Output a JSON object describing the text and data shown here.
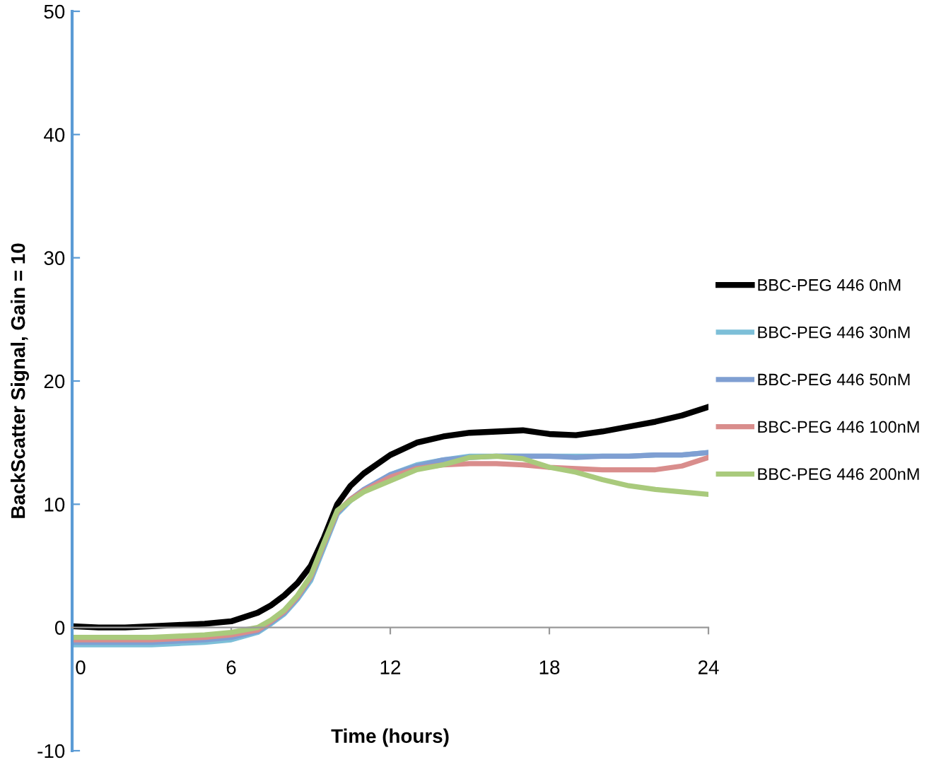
{
  "chart_data": {
    "type": "line",
    "xlabel": "Time (hours)",
    "ylabel": "BackScatter Signal, Gain = 10",
    "x": [
      0,
      1,
      2,
      3,
      4,
      5,
      6,
      7,
      7.5,
      8,
      8.5,
      9,
      9.5,
      10,
      10.5,
      11,
      12,
      13,
      14,
      15,
      16,
      17,
      18,
      19,
      20,
      21,
      22,
      23,
      24
    ],
    "series": [
      {
        "name": "BBC-PEG 446 0nM",
        "color": "#000000",
        "values": [
          0.1,
          0.0,
          0.0,
          0.1,
          0.2,
          0.3,
          0.5,
          1.2,
          1.8,
          2.6,
          3.6,
          5.0,
          7.3,
          10.0,
          11.5,
          12.5,
          14.0,
          15.0,
          15.5,
          15.8,
          15.9,
          16.0,
          15.7,
          15.6,
          15.9,
          16.3,
          16.7,
          17.2,
          17.9
        ]
      },
      {
        "name": "BBC-PEG 446 30nM",
        "color": "#7dbfd8",
        "values": [
          -1.4,
          -1.4,
          -1.4,
          -1.4,
          -1.3,
          -1.2,
          -1.0,
          -0.4,
          0.3,
          1.1,
          2.3,
          3.8,
          6.5,
          9.2,
          10.3,
          11.1,
          12.4,
          13.2,
          13.6,
          13.9,
          13.9,
          13.9,
          13.9,
          13.9,
          13.9,
          13.9,
          14.0,
          14.0,
          14.2
        ]
      },
      {
        "name": "BBC-PEG 446 50nM",
        "color": "#7f9fd2",
        "values": [
          -1.2,
          -1.2,
          -1.2,
          -1.2,
          -1.1,
          -1.0,
          -0.8,
          -0.3,
          0.4,
          1.2,
          2.4,
          4.0,
          6.7,
          9.3,
          10.4,
          11.2,
          12.4,
          13.1,
          13.6,
          13.8,
          13.9,
          13.9,
          13.9,
          13.8,
          13.9,
          13.9,
          14.0,
          14.0,
          14.2
        ]
      },
      {
        "name": "BBC-PEG 446 100nM",
        "color": "#d98d8c",
        "values": [
          -1.0,
          -1.0,
          -1.0,
          -1.0,
          -0.9,
          -0.8,
          -0.6,
          -0.2,
          0.5,
          1.3,
          2.5,
          4.1,
          6.8,
          9.4,
          10.4,
          11.1,
          12.2,
          12.9,
          13.2,
          13.3,
          13.3,
          13.2,
          13.0,
          12.9,
          12.8,
          12.8,
          12.8,
          13.1,
          13.8
        ]
      },
      {
        "name": "BBC-PEG 446 200nM",
        "color": "#a9ca7c",
        "values": [
          -0.8,
          -0.8,
          -0.8,
          -0.8,
          -0.7,
          -0.6,
          -0.4,
          0.0,
          0.6,
          1.4,
          2.6,
          4.2,
          6.9,
          9.5,
          10.3,
          11.0,
          11.9,
          12.8,
          13.2,
          13.8,
          13.9,
          13.7,
          13.0,
          12.6,
          12.0,
          11.5,
          11.2,
          11.0,
          10.8
        ]
      }
    ],
    "xlim": [
      0,
      24
    ],
    "xticks": [
      0,
      6,
      12,
      18,
      24
    ],
    "ylim": [
      -10,
      50
    ],
    "yticks": [
      -10,
      0,
      10,
      20,
      30,
      40,
      50
    ],
    "grid": false,
    "legend": "right",
    "marker": "none",
    "line_style": "solid"
  }
}
